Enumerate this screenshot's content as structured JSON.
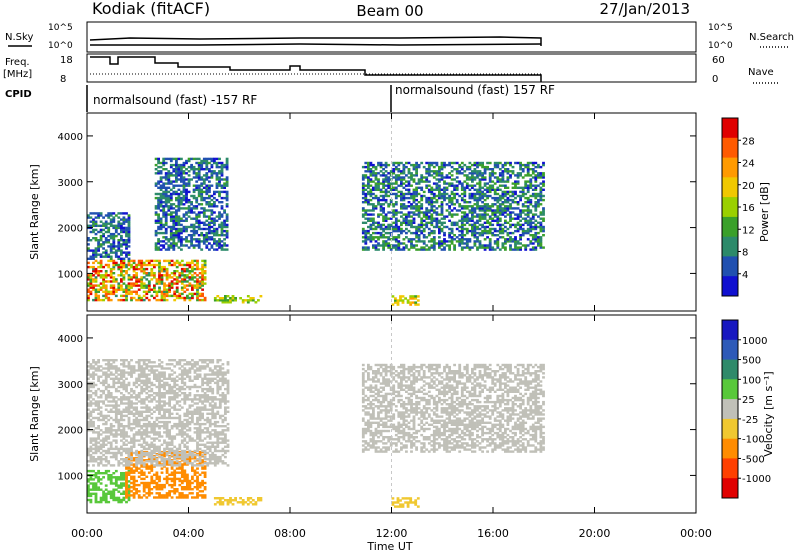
{
  "header": {
    "station": "Kodiak (fitACF)",
    "beam": "Beam 00",
    "date": "27/Jan/2013"
  },
  "top_panel": {
    "nsky_label": "N.Sky",
    "nsearch_label": "N.Search",
    "left_ticks": [
      "10^5",
      "10^0"
    ],
    "right_ticks": [
      "10^5",
      "10^0"
    ],
    "freq_label": "Freq.",
    "freq_unit": "[MHz]",
    "freq_ticks": [
      "18",
      "8"
    ],
    "nave_label": "Nave",
    "nave_ticks": [
      "60",
      "0"
    ],
    "cpid_label": "CPID",
    "cpid_segments": [
      "normalsound (fast) -157 RF",
      "normalsound (fast) 157 RF"
    ]
  },
  "axes": {
    "ylabel": "Slant Range [km]",
    "yticks": [
      "1000",
      "2000",
      "3000",
      "4000"
    ],
    "xticks": [
      "00:00",
      "04:00",
      "08:00",
      "12:00",
      "16:00",
      "20:00",
      "00:00"
    ],
    "xlabel": "Time UT"
  },
  "power_colorbar": {
    "label": "Power [dB]",
    "ticks": [
      "28",
      "24",
      "20",
      "16",
      "12",
      "8",
      "4"
    ],
    "colors": [
      "#e00000",
      "#ff5a00",
      "#ff9a00",
      "#f0c800",
      "#9ad000",
      "#3aa02a",
      "#2c8a6a",
      "#2050b0",
      "#1010d0"
    ]
  },
  "velocity_colorbar": {
    "label": "Velocity [m s⁻¹]",
    "ticks": [
      "1000",
      "500",
      "100",
      "25",
      "-25",
      "-100",
      "-500",
      "-1000"
    ],
    "colors": [
      "#1818c0",
      "#2e5ab8",
      "#2f8a6a",
      "#58c83a",
      "#c0c0b8",
      "#f0c830",
      "#ff8c00",
      "#ff4000",
      "#e00000"
    ]
  },
  "chart_data": [
    {
      "type": "heatmap",
      "title": "Power",
      "x_range": [
        "00:00",
        "24:00"
      ],
      "ylim": [
        180,
        4500
      ],
      "xlabel": "Time UT",
      "ylabel": "Slant Range [km]",
      "zlabel": "Power [dB]",
      "z_ticks": [
        4,
        8,
        12,
        16,
        20,
        24,
        28
      ],
      "data_end_time": "18:00",
      "regions": [
        {
          "start": "00:00",
          "end": "04:40",
          "range_km": [
            400,
            1300
          ],
          "power_db": [
            10,
            30
          ]
        },
        {
          "start": "00:00",
          "end": "01:40",
          "range_km": [
            1300,
            2300
          ],
          "power_db": [
            4,
            12
          ]
        },
        {
          "start": "02:40",
          "end": "05:30",
          "range_km": [
            1500,
            3500
          ],
          "power_db": [
            4,
            12
          ]
        },
        {
          "start": "05:00",
          "end": "06:50",
          "range_km": [
            350,
            500
          ],
          "power_db": [
            12,
            20
          ]
        },
        {
          "start": "10:50",
          "end": "18:00",
          "range_km": [
            1500,
            3400
          ],
          "power_db": [
            4,
            14
          ]
        },
        {
          "start": "12:00",
          "end": "13:00",
          "range_km": [
            300,
            500
          ],
          "power_db": [
            14,
            22
          ]
        }
      ]
    },
    {
      "type": "heatmap",
      "title": "Velocity",
      "x_range": [
        "00:00",
        "24:00"
      ],
      "ylim": [
        180,
        4500
      ],
      "xlabel": "Time UT",
      "ylabel": "Slant Range [km]",
      "zlabel": "Velocity [m s⁻¹]",
      "z_ticks": [
        -1000,
        -500,
        -100,
        -25,
        25,
        100,
        500,
        1000
      ],
      "data_end_time": "18:00",
      "regions": [
        {
          "start": "00:00",
          "end": "01:40",
          "range_km": [
            400,
            1100
          ],
          "velocity_ms": [
            25,
            100
          ]
        },
        {
          "start": "01:30",
          "end": "04:40",
          "range_km": [
            500,
            1500
          ],
          "velocity_ms": [
            -500,
            -100
          ]
        },
        {
          "start": "00:00",
          "end": "05:30",
          "range_km": [
            1200,
            3500
          ],
          "velocity_ms": [
            -25,
            25
          ]
        },
        {
          "start": "05:00",
          "end": "06:50",
          "range_km": [
            350,
            500
          ],
          "velocity_ms": [
            -100,
            -25
          ]
        },
        {
          "start": "10:50",
          "end": "18:00",
          "range_km": [
            1500,
            3400
          ],
          "velocity_ms": [
            -25,
            25
          ]
        },
        {
          "start": "12:00",
          "end": "13:00",
          "range_km": [
            300,
            500
          ],
          "velocity_ms": [
            -100,
            -25
          ]
        }
      ]
    }
  ]
}
